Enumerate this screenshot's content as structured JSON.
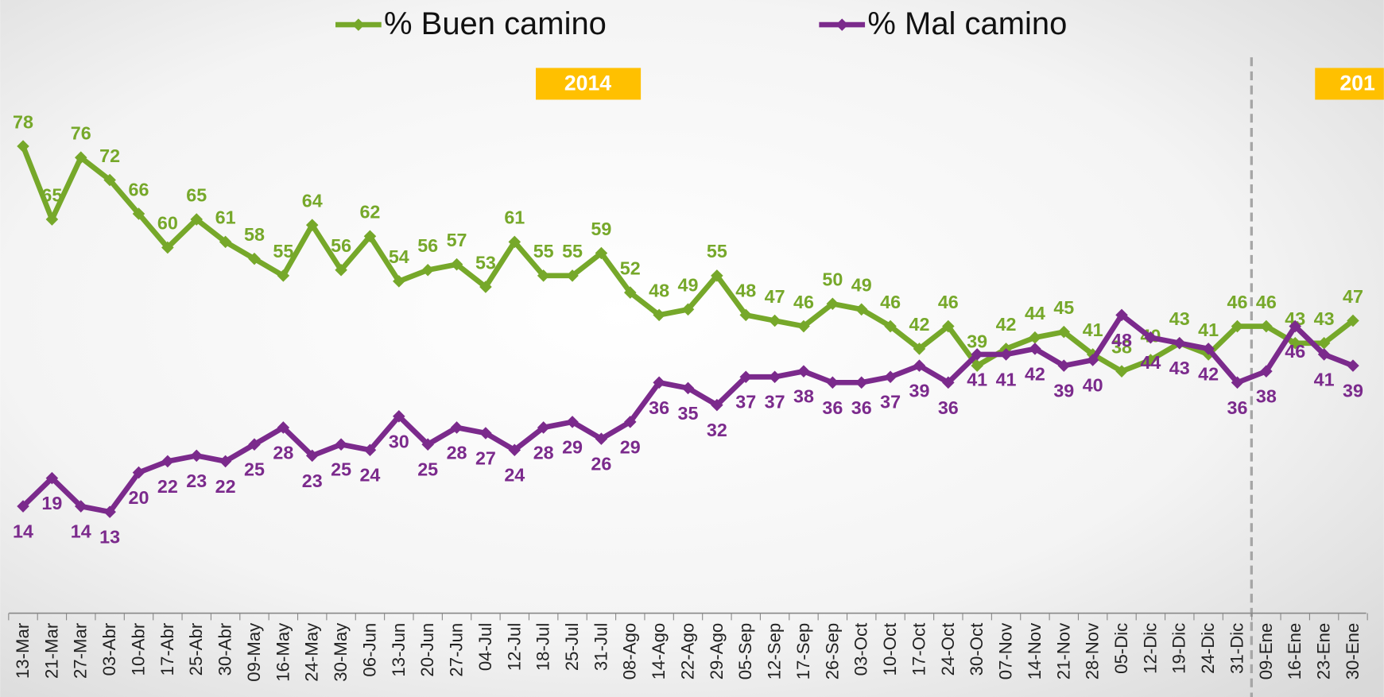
{
  "chart_data": {
    "type": "line",
    "categories": [
      "13-Mar",
      "21-Mar",
      "27-Mar",
      "03-Abr",
      "10-Abr",
      "17-Abr",
      "25-Abr",
      "30-Abr",
      "09-May",
      "16-May",
      "24-May",
      "30-May",
      "06-Jun",
      "13-Jun",
      "20-Jun",
      "27-Jun",
      "04-Jul",
      "12-Jul",
      "18-Jul",
      "25-Jul",
      "31-Jul",
      "08-Ago",
      "14-Ago",
      "22-Ago",
      "29-Ago",
      "05-Sep",
      "12-Sep",
      "17-Sep",
      "26-Sep",
      "03-Oct",
      "10-Oct",
      "17-Oct",
      "24-Oct",
      "30-Oct",
      "07-Nov",
      "14-Nov",
      "21-Nov",
      "28-Nov",
      "05-Dic",
      "12-Dic",
      "19-Dic",
      "24-Dic",
      "31-Dic",
      "09-Ene",
      "16-Ene",
      "23-Ene",
      "30-Ene"
    ],
    "series": [
      {
        "name": "% Buen camino",
        "color": "#76a82a",
        "values": [
          78,
          65,
          76,
          72,
          66,
          60,
          65,
          61,
          58,
          55,
          64,
          56,
          62,
          54,
          56,
          57,
          53,
          61,
          55,
          55,
          59,
          52,
          48,
          49,
          55,
          48,
          47,
          46,
          50,
          49,
          46,
          42,
          46,
          39,
          42,
          44,
          45,
          41,
          38,
          40,
          43,
          41,
          46,
          46,
          43,
          43,
          47
        ]
      },
      {
        "name": "% Mal camino",
        "color": "#7b2a8c",
        "values": [
          14,
          19,
          14,
          13,
          20,
          22,
          23,
          22,
          25,
          28,
          23,
          25,
          24,
          30,
          25,
          28,
          27,
          24,
          28,
          29,
          26,
          29,
          36,
          35,
          32,
          37,
          37,
          38,
          36,
          36,
          37,
          39,
          36,
          41,
          41,
          42,
          39,
          40,
          48,
          44,
          43,
          42,
          36,
          38,
          46,
          41,
          39
        ]
      }
    ],
    "ylim": [
      -5,
      104
    ],
    "annotations": [
      "2014",
      "201"
    ],
    "legend": "top"
  }
}
